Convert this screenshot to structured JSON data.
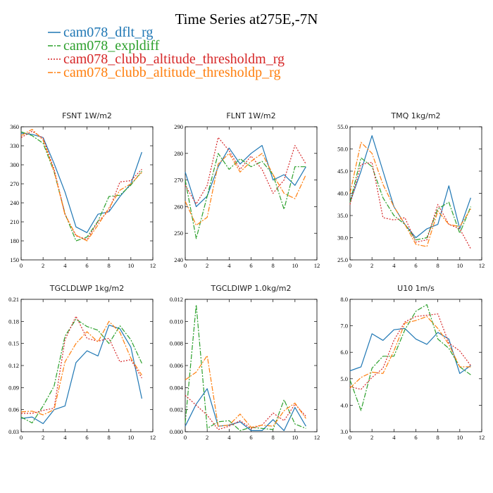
{
  "figure": {
    "title": "Time Series at275E,-7N"
  },
  "legend": [
    {
      "name": "cam078_dflt_rg",
      "color": "#1f77b4",
      "dash": "solid"
    },
    {
      "name": "cam078_expldiff",
      "color": "#2ca02c",
      "dash": "dashdot"
    },
    {
      "name": "cam078_clubb_altitude_thresholdm_rg",
      "color": "#d62728",
      "dash": "dotted"
    },
    {
      "name": "cam078_clubb_altitude_thresholdp_rg",
      "color": "#ff7f0e",
      "dash": "dashdot"
    }
  ],
  "chart_data": [
    {
      "type": "line",
      "title": "FSNT   1W/m2",
      "x": [
        0,
        1,
        2,
        3,
        4,
        5,
        6,
        7,
        8,
        9,
        10,
        11
      ],
      "xlim": [
        0,
        12
      ],
      "xticks": [
        0,
        2,
        4,
        6,
        8,
        10,
        12
      ],
      "xtick_labels": [
        "0",
        "2",
        "4",
        "6",
        "8",
        "10",
        "12"
      ],
      "ylim": [
        150,
        360
      ],
      "yticks": [
        150,
        180,
        210,
        240,
        270,
        300,
        330,
        360
      ],
      "ytick_labels": [
        "150",
        "180",
        "210",
        "240",
        "270",
        "300",
        "330",
        "360"
      ],
      "series": [
        {
          "name": "cam078_dflt_rg",
          "values": [
            350,
            348,
            343,
            302,
            257,
            202,
            193,
            222,
            226,
            250,
            270,
            320
          ]
        },
        {
          "name": "cam078_expldiff",
          "values": [
            352,
            346,
            334,
            289,
            223,
            180,
            186,
            211,
            250,
            252,
            268,
            290
          ]
        },
        {
          "name": "cam078_clubb_altitude_thresholdm_rg",
          "values": [
            343,
            353,
            342,
            293,
            222,
            188,
            182,
            210,
            228,
            273,
            275,
            293
          ]
        },
        {
          "name": "cam078_clubb_altitude_thresholdp_rg",
          "values": [
            346,
            356,
            339,
            290,
            221,
            189,
            180,
            205,
            232,
            260,
            270,
            288
          ]
        }
      ]
    },
    {
      "type": "line",
      "title": "FLNT   1W/m2",
      "x": [
        0,
        1,
        2,
        3,
        4,
        5,
        6,
        7,
        8,
        9,
        10,
        11
      ],
      "xlim": [
        0,
        12
      ],
      "xticks": [
        0,
        2,
        4,
        6,
        8,
        10,
        12
      ],
      "xtick_labels": [
        "0",
        "2",
        "4",
        "6",
        "8",
        "10",
        "12"
      ],
      "ylim": [
        240,
        290
      ],
      "yticks": [
        240,
        250,
        260,
        270,
        280,
        290
      ],
      "ytick_labels": [
        "240",
        "250",
        "260",
        "270",
        "280",
        "290"
      ],
      "series": [
        {
          "name": "cam078_dflt_rg",
          "values": [
            273,
            260,
            264,
            275,
            282,
            276,
            280,
            283,
            270,
            272,
            268,
            275
          ]
        },
        {
          "name": "cam078_expldiff",
          "values": [
            270,
            248,
            264,
            280,
            274,
            278,
            275,
            277,
            272,
            259,
            275,
            275
          ]
        },
        {
          "name": "cam078_clubb_altitude_thresholdm_rg",
          "values": [
            268,
            261,
            268,
            286,
            281,
            274,
            279,
            274,
            265,
            270,
            283,
            276
          ]
        },
        {
          "name": "cam078_clubb_altitude_thresholdp_rg",
          "values": [
            262,
            253,
            256,
            276,
            280,
            273,
            277,
            280,
            272,
            265,
            263,
            272
          ]
        }
      ]
    },
    {
      "type": "line",
      "title": "TMQ   1kg/m2",
      "x": [
        0,
        1,
        2,
        3,
        4,
        5,
        6,
        7,
        8,
        9,
        10,
        11
      ],
      "xlim": [
        0,
        12
      ],
      "xticks": [
        0,
        2,
        4,
        6,
        8,
        10,
        12
      ],
      "xtick_labels": [
        "0",
        "2",
        "4",
        "6",
        "8",
        "10",
        "12"
      ],
      "ylim": [
        25,
        55
      ],
      "yticks": [
        25,
        30,
        35,
        40,
        45,
        50,
        55
      ],
      "ytick_labels": [
        "25.0",
        "30.0",
        "35.0",
        "40.0",
        "45.0",
        "50.0",
        "55.0"
      ],
      "series": [
        {
          "name": "cam078_dflt_rg",
          "values": [
            38,
            45,
            53,
            45,
            37,
            33,
            30,
            32,
            33,
            41.7,
            32,
            39
          ]
        },
        {
          "name": "cam078_expldiff",
          "values": [
            38,
            48,
            46,
            39,
            35,
            33,
            29.5,
            30,
            36.5,
            38,
            31,
            37
          ]
        },
        {
          "name": "cam078_clubb_altitude_thresholdm_rg",
          "values": [
            37.5,
            46.5,
            47,
            34.5,
            34,
            34.5,
            29,
            29.5,
            37.5,
            33,
            32,
            27.5
          ]
        },
        {
          "name": "cam078_clubb_altitude_thresholdp_rg",
          "values": [
            40,
            51.5,
            49,
            42,
            37,
            33,
            28.5,
            28,
            36,
            33,
            32.5,
            36.5
          ]
        }
      ]
    },
    {
      "type": "line",
      "title": "TGCLDLWP   1kg/m2",
      "x": [
        0,
        1,
        2,
        3,
        4,
        5,
        6,
        7,
        8,
        9,
        10,
        11
      ],
      "xlim": [
        0,
        12
      ],
      "xticks": [
        0,
        2,
        4,
        6,
        8,
        10,
        12
      ],
      "xtick_labels": [
        "0",
        "2",
        "4",
        "6",
        "8",
        "10",
        "12"
      ],
      "ylim": [
        0.03,
        0.21
      ],
      "yticks": [
        0.03,
        0.06,
        0.09,
        0.12,
        0.15,
        0.18,
        0.21
      ],
      "ytick_labels": [
        "0.03",
        "0.06",
        "0.09",
        "0.12",
        "0.15",
        "0.18",
        "0.21"
      ],
      "series": [
        {
          "name": "cam078_dflt_rg",
          "values": [
            0.048,
            0.05,
            0.041,
            0.06,
            0.065,
            0.124,
            0.14,
            0.133,
            0.175,
            0.17,
            0.145,
            0.075
          ]
        },
        {
          "name": "cam078_expldiff",
          "values": [
            0.05,
            0.042,
            0.065,
            0.092,
            0.16,
            0.183,
            0.173,
            0.168,
            0.15,
            0.174,
            0.155,
            0.123
          ]
        },
        {
          "name": "cam078_clubb_altitude_thresholdm_rg",
          "values": [
            0.055,
            0.055,
            0.059,
            0.062,
            0.155,
            0.187,
            0.157,
            0.153,
            0.157,
            0.125,
            0.128,
            0.103
          ]
        },
        {
          "name": "cam078_clubb_altitude_thresholdp_rg",
          "values": [
            0.057,
            0.058,
            0.053,
            0.06,
            0.125,
            0.15,
            0.166,
            0.152,
            0.18,
            0.165,
            0.13,
            0.107
          ]
        }
      ]
    },
    {
      "type": "line",
      "title": "TGCLDIWP   1.0kg/m2",
      "x": [
        0,
        1,
        2,
        3,
        4,
        5,
        6,
        7,
        8,
        9,
        10,
        11
      ],
      "xlim": [
        0,
        12
      ],
      "xticks": [
        0,
        2,
        4,
        6,
        8,
        10,
        12
      ],
      "xtick_labels": [
        "0",
        "2",
        "4",
        "6",
        "8",
        "10",
        "12"
      ],
      "ylim": [
        0,
        0.012
      ],
      "yticks": [
        0,
        0.002,
        0.004,
        0.006,
        0.008,
        0.01,
        0.012
      ],
      "ytick_labels": [
        "0.000",
        "0.002",
        "0.004",
        "0.006",
        "0.008",
        "0.010",
        "0.012"
      ],
      "series": [
        {
          "name": "cam078_dflt_rg",
          "values": [
            0.0005,
            0.0025,
            0.0039,
            0.0005,
            0.0006,
            0.0009,
            0.0001,
            0.0001,
            0.0011,
            0.0001,
            0.0022,
            0.0005
          ]
        },
        {
          "name": "cam078_expldiff",
          "values": [
            0.0008,
            0.0115,
            0.0003,
            0.0009,
            0.001,
            0.0001,
            0.0004,
            0.0003,
            0.0002,
            0.0029,
            0.0007,
            0.0003
          ]
        },
        {
          "name": "cam078_clubb_altitude_thresholdm_rg",
          "values": [
            0.0033,
            0.0024,
            0.0015,
            0.0002,
            0.0005,
            0.001,
            0.0003,
            0.0006,
            0.0017,
            0.001,
            0.0025,
            0.0014
          ]
        },
        {
          "name": "cam078_clubb_altitude_thresholdp_rg",
          "values": [
            0.0047,
            0.0054,
            0.0069,
            0.0005,
            0.0006,
            0.0016,
            0.0004,
            0.0006,
            0.0005,
            0.0019,
            0.0026,
            0.0012
          ]
        }
      ]
    },
    {
      "type": "line",
      "title": "U10   1m/s",
      "x": [
        0,
        1,
        2,
        3,
        4,
        5,
        6,
        7,
        8,
        9,
        10,
        11
      ],
      "xlim": [
        0,
        12
      ],
      "xticks": [
        0,
        2,
        4,
        6,
        8,
        10,
        12
      ],
      "xtick_labels": [
        "0",
        "2",
        "4",
        "6",
        "8",
        "10",
        "12"
      ],
      "ylim": [
        3,
        8
      ],
      "yticks": [
        3,
        4,
        5,
        6,
        7,
        8
      ],
      "ytick_labels": [
        "3.0",
        "4.0",
        "5.0",
        "6.0",
        "7.0",
        "8.0"
      ],
      "series": [
        {
          "name": "cam078_dflt_rg",
          "values": [
            5.3,
            5.45,
            6.7,
            6.45,
            6.85,
            6.9,
            6.5,
            6.3,
            6.75,
            6.5,
            5.2,
            5.5
          ]
        },
        {
          "name": "cam078_expldiff",
          "values": [
            4.95,
            3.8,
            5.4,
            5.85,
            5.85,
            6.85,
            7.55,
            7.8,
            6.5,
            6.15,
            5.45,
            5.15
          ]
        },
        {
          "name": "cam078_clubb_altitude_thresholdm_rg",
          "values": [
            4.7,
            4.6,
            5.05,
            5.4,
            6.45,
            7.15,
            7.35,
            7.4,
            7.45,
            6.35,
            6.05,
            5.5
          ]
        },
        {
          "name": "cam078_clubb_altitude_thresholdp_rg",
          "values": [
            4.65,
            5.05,
            5.25,
            5.2,
            6.05,
            7.1,
            7.2,
            7.35,
            6.9,
            6.3,
            5.45,
            5.45
          ]
        }
      ]
    }
  ]
}
